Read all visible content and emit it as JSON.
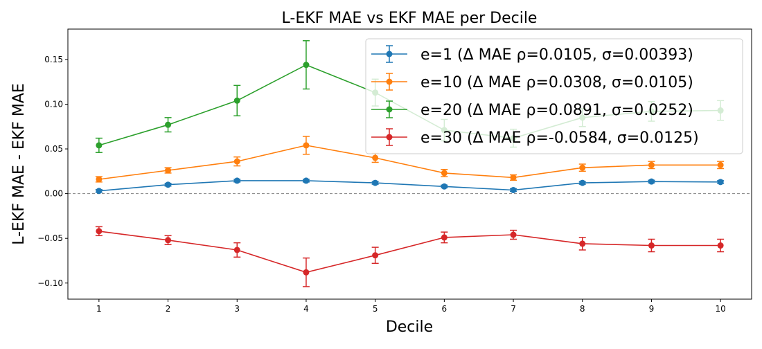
{
  "chart_data": {
    "type": "line",
    "title": "L-EKF MAE vs EKF MAE per Decile",
    "xlabel": "Decile",
    "ylabel": "L-EKF MAE - EKF MAE",
    "x": [
      1,
      2,
      3,
      4,
      5,
      6,
      7,
      8,
      9,
      10
    ],
    "xlim": [
      0.55,
      10.45
    ],
    "ylim": [
      -0.118,
      0.184
    ],
    "y_ticks": [
      -0.1,
      -0.05,
      0.0,
      0.05,
      0.1,
      0.15
    ],
    "y_tick_labels": [
      "−0.10",
      "−0.05",
      "0.00",
      "0.05",
      "0.10",
      "0.15"
    ],
    "reference_line": 0.0,
    "grid": false,
    "legend_position": "top-right",
    "series": [
      {
        "name": "e=1",
        "legend_label": "e=1 (Δ MAE ρ=0.0105, σ=0.00393)",
        "color": "#1f77b4",
        "values": [
          0.003,
          0.01,
          0.0145,
          0.0145,
          0.012,
          0.008,
          0.004,
          0.012,
          0.0135,
          0.013
        ],
        "errors": [
          0.0015,
          0.0015,
          0.0015,
          0.0015,
          0.0015,
          0.0015,
          0.0015,
          0.0015,
          0.0015,
          0.0015
        ]
      },
      {
        "name": "e=10",
        "legend_label": "e=10 (Δ MAE ρ=0.0308, σ=0.0105)",
        "color": "#ff7f0e",
        "values": [
          0.016,
          0.026,
          0.036,
          0.054,
          0.04,
          0.023,
          0.018,
          0.029,
          0.032,
          0.032
        ],
        "errors": [
          0.003,
          0.003,
          0.005,
          0.01,
          0.005,
          0.004,
          0.003,
          0.004,
          0.004,
          0.004
        ]
      },
      {
        "name": "e=20",
        "legend_label": "e=20 (Δ MAE ρ=0.0891, σ=0.0252)",
        "color": "#2ca02c",
        "values": [
          0.054,
          0.077,
          0.104,
          0.144,
          0.113,
          0.071,
          0.062,
          0.085,
          0.092,
          0.093
        ],
        "errors": [
          0.008,
          0.008,
          0.017,
          0.027,
          0.015,
          0.012,
          0.01,
          0.01,
          0.011,
          0.011
        ]
      },
      {
        "name": "e=30",
        "legend_label": "e=30 (Δ MAE ρ=-0.0584, σ=0.0125)",
        "color": "#d62728",
        "values": [
          -0.042,
          -0.052,
          -0.063,
          -0.088,
          -0.069,
          -0.049,
          -0.046,
          -0.056,
          -0.058,
          -0.058
        ],
        "errors": [
          0.005,
          0.005,
          0.008,
          0.016,
          0.009,
          0.006,
          0.005,
          0.007,
          0.007,
          0.007
        ]
      }
    ]
  }
}
